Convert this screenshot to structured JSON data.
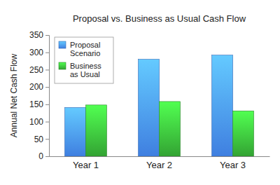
{
  "chart_data": {
    "type": "bar",
    "title": "Proposal vs. Business as Usual Cash Flow",
    "y_label": "Annual Net Cash Flow",
    "categories": [
      "Year 1",
      "Year 2",
      "Year 3"
    ],
    "series": [
      {
        "name": "Proposal Scenario",
        "color": "#3f7fe0",
        "values": [
          141,
          280,
          292
        ]
      },
      {
        "name": "Business as Usual",
        "color": "#33a333",
        "values": [
          148,
          158,
          131
        ]
      }
    ],
    "ylim": [
      0,
      350
    ],
    "yticks": [
      0,
      50,
      100,
      150,
      200,
      250,
      300,
      350
    ],
    "grid": false,
    "legend": "upper left"
  }
}
